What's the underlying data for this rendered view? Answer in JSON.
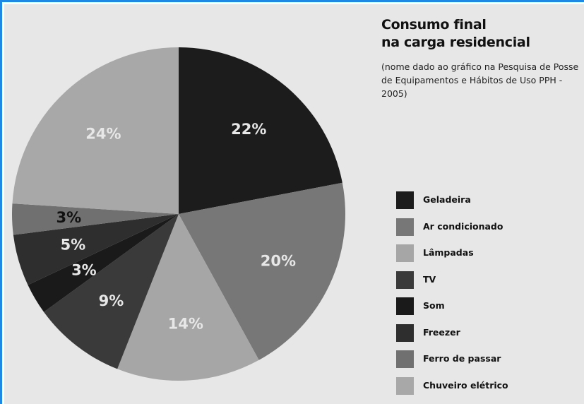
{
  "title_line1": "Consumo final",
  "title_line2": "na carga residencial",
  "subtitle": "(nome dado ao gráfico na Pesquisa de Posse de Equipamentos e Hábitos de Uso PPH - 2005)",
  "chart_data": {
    "type": "pie",
    "title": "Consumo final na carga residencial",
    "legend_position": "right",
    "slices": [
      {
        "label": "Geladeira",
        "value": 22,
        "display": "22%",
        "color": "#1c1c1c",
        "label_color": "#e7e7e7"
      },
      {
        "label": "Ar condicionado",
        "value": 20,
        "display": "20%",
        "color": "#777777",
        "label_color": "#e7e7e7"
      },
      {
        "label": "Lâmpadas",
        "value": 14,
        "display": "14%",
        "color": "#a6a6a6",
        "label_color": "#e7e7e7"
      },
      {
        "label": "TV",
        "value": 9,
        "display": "9%",
        "color": "#3a3a3a",
        "label_color": "#e7e7e7"
      },
      {
        "label": "Som",
        "value": 3,
        "display": "3%",
        "color": "#1a1a1a",
        "label_color": "#e7e7e7"
      },
      {
        "label": "Freezer",
        "value": 5,
        "display": "5%",
        "color": "#2e2e2e",
        "label_color": "#e7e7e7"
      },
      {
        "label": "Ferro de passar",
        "value": 3,
        "display": "3%",
        "color": "#707070",
        "label_color": "#111111"
      },
      {
        "label": "Chuveiro elétrico",
        "value": 24,
        "display": "24%",
        "color": "#a8a8a8",
        "label_color": "#e7e7e7"
      }
    ]
  }
}
